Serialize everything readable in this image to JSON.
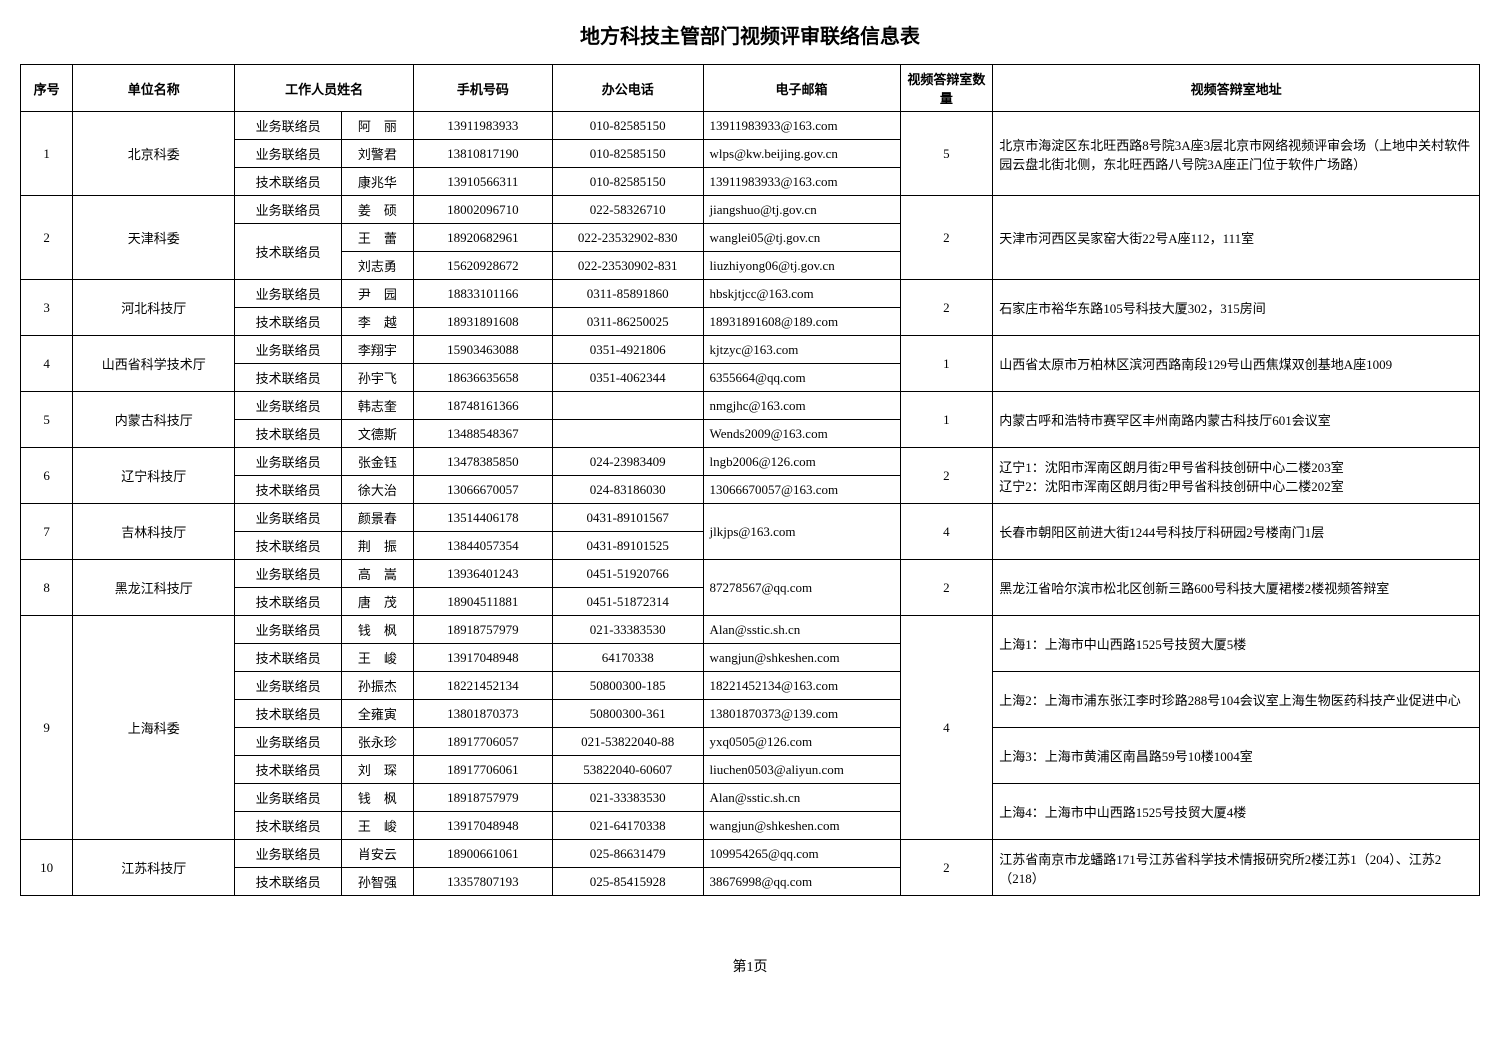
{
  "title": "地方科技主管部门视频评审联络信息表",
  "footer": "第1页",
  "headers": {
    "seq": "序号",
    "unit": "单位名称",
    "staff": "工作人员姓名",
    "mobile": "手机号码",
    "tel": "办公电话",
    "email": "电子邮箱",
    "count": "视频答辩室数量",
    "address": "视频答辩室地址"
  },
  "rows": [
    {
      "seq": "1",
      "unit": "北京科委",
      "count": "5",
      "staff": [
        {
          "role": "业务联络员",
          "name": "阿　丽",
          "mobile": "13911983933",
          "tel": "010-82585150",
          "email": "13911983933@163.com"
        },
        {
          "role": "业务联络员",
          "name": "刘警君",
          "mobile": "13810817190",
          "tel": "010-82585150",
          "email": "wlps@kw.beijing.gov.cn"
        },
        {
          "role": "技术联络员",
          "name": "康兆华",
          "mobile": "13910566311",
          "tel": "010-82585150",
          "email": "13911983933@163.com"
        }
      ],
      "addr": [
        "北京市海淀区东北旺西路8号院3A座3层北京市网络视频评审会场（上地中关村软件园云盘北街北侧，东北旺西路八号院3A座正门位于软件广场路）"
      ]
    },
    {
      "seq": "2",
      "unit": "天津科委",
      "count": "2",
      "staff": [
        {
          "role": "业务联络员",
          "name": "姜　硕",
          "mobile": "18002096710",
          "tel": "022-58326710",
          "email": "jiangshuo@tj.gov.cn"
        },
        {
          "role": "技术联络员",
          "name": "王　蕾",
          "mobile": "18920682961",
          "tel": "022-23532902-830",
          "email": "wanglei05@tj.gov.cn",
          "roleSpan": 2
        },
        {
          "name": "刘志勇",
          "mobile": "15620928672",
          "tel": "022-23530902-831",
          "email": "liuzhiyong06@tj.gov.cn"
        }
      ],
      "addr": [
        "天津市河西区吴家窑大街22号A座112，111室"
      ]
    },
    {
      "seq": "3",
      "unit": "河北科技厅",
      "count": "2",
      "staff": [
        {
          "role": "业务联络员",
          "name": "尹　园",
          "mobile": "18833101166",
          "tel": "0311-85891860",
          "email": "hbskjtjcc@163.com"
        },
        {
          "role": "技术联络员",
          "name": "李　越",
          "mobile": "18931891608",
          "tel": "0311-86250025",
          "email": "18931891608@189.com"
        }
      ],
      "addr": [
        "石家庄市裕华东路105号科技大厦302，315房间"
      ]
    },
    {
      "seq": "4",
      "unit": "山西省科学技术厅",
      "count": "1",
      "staff": [
        {
          "role": "业务联络员",
          "name": "李翔宇",
          "mobile": "15903463088",
          "tel": "0351-4921806",
          "email": "kjtzyc@163.com"
        },
        {
          "role": "技术联络员",
          "name": "孙宇飞",
          "mobile": "18636635658",
          "tel": "0351-4062344",
          "email": "6355664@qq.com"
        }
      ],
      "addr": [
        "山西省太原市万柏林区滨河西路南段129号山西焦煤双创基地A座1009"
      ]
    },
    {
      "seq": "5",
      "unit": "内蒙古科技厅",
      "count": "1",
      "staff": [
        {
          "role": "业务联络员",
          "name": "韩志奎",
          "mobile": "18748161366",
          "tel": "",
          "email": "nmgjhc@163.com"
        },
        {
          "role": "技术联络员",
          "name": "文德斯",
          "mobile": "13488548367",
          "tel": "",
          "email": "Wends2009@163.com"
        }
      ],
      "addr": [
        "内蒙古呼和浩特市赛罕区丰州南路内蒙古科技厅601会议室"
      ]
    },
    {
      "seq": "6",
      "unit": "辽宁科技厅",
      "count": "2",
      "staff": [
        {
          "role": "业务联络员",
          "name": "张金钰",
          "mobile": "13478385850",
          "tel": "024-23983409",
          "email": "lngb2006@126.com"
        },
        {
          "role": "技术联络员",
          "name": "徐大治",
          "mobile": "13066670057",
          "tel": "024-83186030",
          "email": "13066670057@163.com"
        }
      ],
      "addr": [
        "辽宁1：沈阳市浑南区朗月街2甲号省科技创研中心二楼203室\n辽宁2：沈阳市浑南区朗月街2甲号省科技创研中心二楼202室"
      ]
    },
    {
      "seq": "7",
      "unit": "吉林科技厅",
      "count": "4",
      "staff": [
        {
          "role": "业务联络员",
          "name": "颜景春",
          "mobile": "13514406178",
          "tel": "0431-89101567",
          "email": "jlkjps@163.com",
          "emailSpan": 2
        },
        {
          "role": "技术联络员",
          "name": "荆　振",
          "mobile": "13844057354",
          "tel": "0431-89101525"
        }
      ],
      "addr": [
        "长春市朝阳区前进大街1244号科技厅科研园2号楼南门1层"
      ]
    },
    {
      "seq": "8",
      "unit": "黑龙江科技厅",
      "count": "2",
      "staff": [
        {
          "role": "业务联络员",
          "name": "高　嵩",
          "mobile": "13936401243",
          "tel": "0451-51920766",
          "email": "87278567@qq.com",
          "emailSpan": 2
        },
        {
          "role": "技术联络员",
          "name": "唐　茂",
          "mobile": "18904511881",
          "tel": "0451-51872314"
        }
      ],
      "addr": [
        "黑龙江省哈尔滨市松北区创新三路600号科技大厦裙楼2楼视频答辩室"
      ]
    },
    {
      "seq": "9",
      "unit": "上海科委",
      "count": "4",
      "staff": [
        {
          "role": "业务联络员",
          "name": "钱　枫",
          "mobile": "18918757979",
          "tel": "021-33383530",
          "email": "Alan@sstic.sh.cn"
        },
        {
          "role": "技术联络员",
          "name": "王　峻",
          "mobile": "13917048948",
          "tel": "64170338",
          "email": "wangjun@shkeshen.com"
        },
        {
          "role": "业务联络员",
          "name": "孙振杰",
          "mobile": "18221452134",
          "tel": "50800300-185",
          "email": "18221452134@163.com"
        },
        {
          "role": "技术联络员",
          "name": "全雍寅",
          "mobile": "13801870373",
          "tel": "50800300-361",
          "email": "13801870373@139.com"
        },
        {
          "role": "业务联络员",
          "name": "张永珍",
          "mobile": "18917706057",
          "tel": "021-53822040-88",
          "email": "yxq0505@126.com"
        },
        {
          "role": "技术联络员",
          "name": "刘　琛",
          "mobile": "18917706061",
          "tel": "53822040-60607",
          "email": "liuchen0503@aliyun.com"
        },
        {
          "role": "业务联络员",
          "name": "钱　枫",
          "mobile": "18918757979",
          "tel": "021-33383530",
          "email": "Alan@sstic.sh.cn"
        },
        {
          "role": "技术联络员",
          "name": "王　峻",
          "mobile": "13917048948",
          "tel": "021-64170338",
          "email": "wangjun@shkeshen.com"
        }
      ],
      "addr": [
        "上海1：上海市中山西路1525号技贸大厦5楼",
        "上海2：上海市浦东张江李时珍路288号104会议室上海生物医药科技产业促进中心",
        "上海3：上海市黄浦区南昌路59号10楼1004室",
        "上海4：上海市中山西路1525号技贸大厦4楼"
      ]
    },
    {
      "seq": "10",
      "unit": "江苏科技厅",
      "count": "2",
      "staff": [
        {
          "role": "业务联络员",
          "name": "肖安云",
          "mobile": "18900661061",
          "tel": "025-86631479",
          "email": "109954265@qq.com"
        },
        {
          "role": "技术联络员",
          "name": "孙智强",
          "mobile": "13357807193",
          "tel": "025-85415928",
          "email": "38676998@qq.com"
        }
      ],
      "addr": [
        "江苏省南京市龙蟠路171号江苏省科学技术情报研究所2楼江苏1（204）、江苏2（218）"
      ]
    }
  ]
}
